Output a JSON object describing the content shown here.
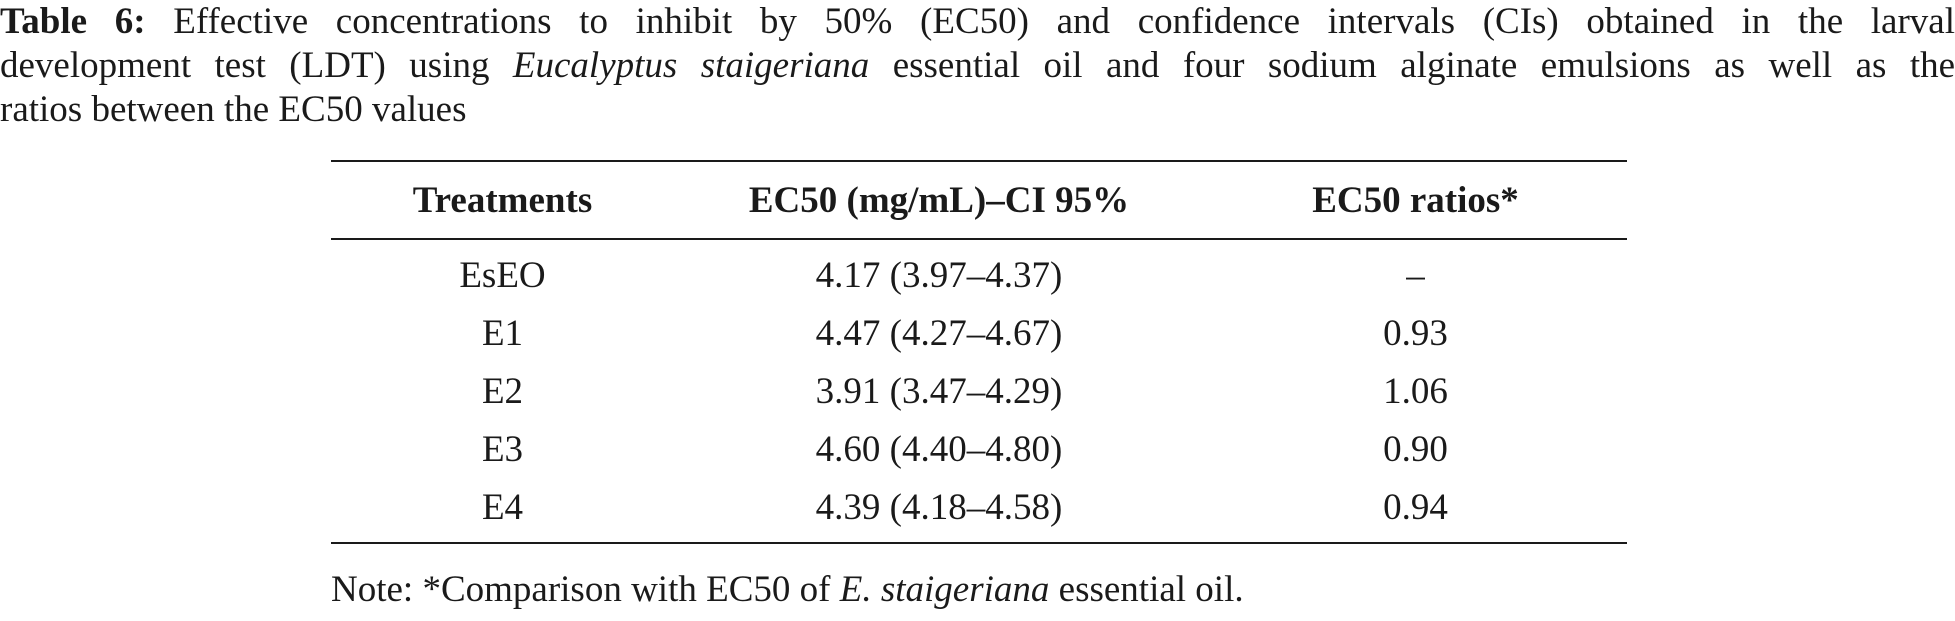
{
  "caption": {
    "label": "Table 6:",
    "line1": "Effective concentrations to inhibit by 50% (EC50) and confidence intervals (CIs) obtained in the larval",
    "line2_pre": "development test (LDT) using",
    "line2_italic": "Eucalyptus staigeriana",
    "line2_post": "essential oil and four sodium alginate emulsions as well as the",
    "line3": "ratios between the EC50 values"
  },
  "table": {
    "headers": [
      "Treatments",
      "EC50 (mg/mL)–CI 95%",
      "EC50 ratios*"
    ],
    "rows": [
      [
        "EsEO",
        "4.17 (3.97–4.37)",
        "–"
      ],
      [
        "E1",
        "4.47 (4.27–4.67)",
        "0.93"
      ],
      [
        "E2",
        "3.91 (3.47–4.29)",
        "1.06"
      ],
      [
        "E3",
        "4.60 (4.40–4.80)",
        "0.90"
      ],
      [
        "E4",
        "4.39 (4.18–4.58)",
        "0.94"
      ]
    ]
  },
  "note": {
    "pre": "Note: *Comparison with EC50 of",
    "italic": "E. staigeriana",
    "post": "essential oil."
  }
}
